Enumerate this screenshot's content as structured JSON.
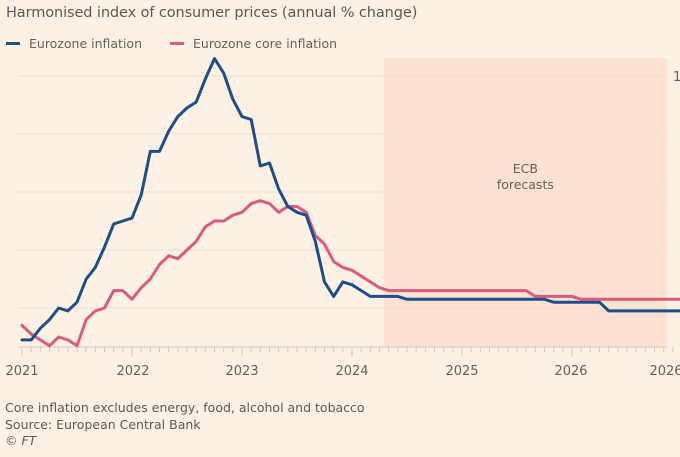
{
  "chart_data": {
    "type": "line",
    "title": "Harmonised index of consumer prices (annual % change)",
    "xlabel": "",
    "ylabel": "",
    "x_start": "2021-01",
    "x_frequency": "monthly",
    "x_ticks": [
      "2021",
      "2022",
      "2023",
      "2024",
      "2025",
      "2026",
      "2026"
    ],
    "y_ticks_visible": [
      "1"
    ],
    "ylim": [
      0.7,
      11
    ],
    "gridlines_y": [
      2,
      4,
      6,
      8,
      10
    ],
    "grid": true,
    "legend_position": "top-left",
    "series": [
      {
        "name": "Eurozone inflation",
        "color": "#1d4f86",
        "values": [
          0.9,
          0.9,
          1.3,
          1.6,
          2.0,
          1.9,
          2.2,
          3.0,
          3.4,
          4.1,
          4.9,
          5.0,
          5.1,
          5.9,
          7.4,
          7.4,
          8.1,
          8.6,
          8.9,
          9.1,
          9.9,
          10.6,
          10.1,
          9.2,
          8.6,
          8.5,
          6.9,
          7.0,
          6.1,
          5.5,
          5.3,
          5.2,
          4.3,
          2.9,
          2.4,
          2.9,
          2.8,
          2.6,
          2.4,
          2.4,
          2.4,
          2.4,
          2.3,
          2.3,
          2.3,
          2.3,
          2.3,
          2.3,
          2.3,
          2.3,
          2.3,
          2.3,
          2.3,
          2.3,
          2.3,
          2.3,
          2.3,
          2.3,
          2.2,
          2.2,
          2.2,
          2.2,
          2.2,
          2.2,
          1.9,
          1.9,
          1.9,
          1.9,
          1.9,
          1.9,
          1.9,
          1.9,
          1.9,
          1.8,
          1.8,
          1.8,
          1.8,
          1.9,
          1.9,
          1.9,
          1.9,
          1.9,
          1.9,
          1.9,
          1.9,
          1.9,
          1.9,
          1.9,
          1.9,
          1.9,
          1.9,
          1.9,
          1.9,
          1.9,
          1.9,
          1.9,
          1.9,
          1.9,
          1.9,
          1.9,
          1.9,
          1.9,
          1.9,
          1.9
        ]
      },
      {
        "name": "Eurozone core inflation",
        "color": "#d85c80",
        "values": [
          1.4,
          1.1,
          0.9,
          0.7,
          1.0,
          0.9,
          0.7,
          1.6,
          1.9,
          2.0,
          2.6,
          2.6,
          2.3,
          2.7,
          3.0,
          3.5,
          3.8,
          3.7,
          4.0,
          4.3,
          4.8,
          5.0,
          5.0,
          5.2,
          5.3,
          5.6,
          5.7,
          5.6,
          5.3,
          5.5,
          5.5,
          5.3,
          4.5,
          4.2,
          3.6,
          3.4,
          3.3,
          3.1,
          2.9,
          2.7,
          2.6,
          2.6,
          2.6,
          2.6,
          2.6,
          2.6,
          2.6,
          2.6,
          2.6,
          2.6,
          2.6,
          2.6,
          2.6,
          2.6,
          2.6,
          2.6,
          2.4,
          2.4,
          2.4,
          2.4,
          2.4,
          2.3,
          2.3,
          2.3,
          2.3,
          2.3,
          2.3,
          2.3,
          2.3,
          2.3,
          2.3,
          2.3,
          2.3,
          2.0,
          2.0,
          2.0,
          2.0,
          2.0,
          2.0,
          2.0,
          2.0,
          2.0,
          2.0,
          2.0,
          2.0,
          2.0,
          2.0,
          2.0,
          2.0,
          2.0,
          2.0,
          2.0,
          2.0,
          2.0,
          2.0,
          2.0,
          2.0,
          2.0,
          2.0,
          2.0,
          2.0,
          2.0,
          2.0,
          2.0
        ]
      }
    ],
    "annotations": [
      {
        "text_line1": "ECB",
        "text_line2": "forecasts",
        "region_start": "2024-05",
        "region_end": "2026-12",
        "color": "#fde2d4"
      }
    ]
  },
  "footer": {
    "note": "Core inflation excludes energy, food, alcohol and tobacco",
    "source": "Source: European Central Bank",
    "copyright": "© FT"
  }
}
